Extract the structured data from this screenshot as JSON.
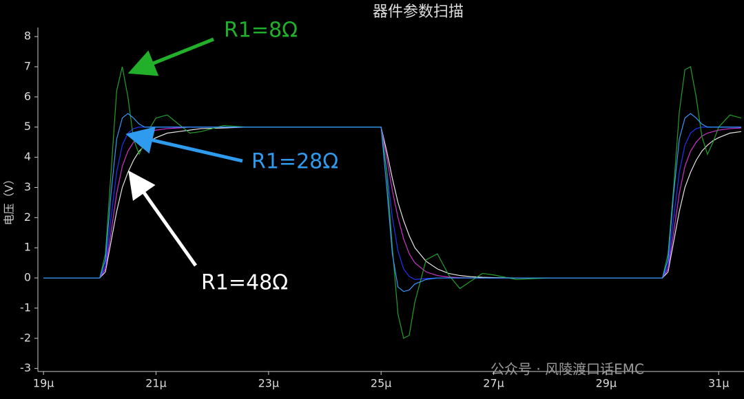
{
  "chart_data": {
    "type": "line",
    "title": "器件参数扫描",
    "y_label": "电压（V）",
    "x": [
      19,
      19.7,
      20.0,
      20.1,
      20.2,
      20.3,
      20.4,
      20.5,
      20.6,
      20.7,
      20.8,
      20.9,
      21.0,
      21.2,
      21.4,
      21.6,
      21.8,
      22.2,
      22.6,
      23,
      24,
      25.0,
      25.1,
      25.2,
      25.3,
      25.4,
      25.5,
      25.6,
      25.8,
      26.0,
      26.2,
      26.4,
      26.6,
      26.8,
      27.0,
      27.4,
      28,
      29,
      30.0,
      30.1,
      30.2,
      30.3,
      30.4,
      30.5,
      30.6,
      30.7,
      30.8,
      30.9,
      31.0,
      31.2,
      31.4
    ],
    "series": [
      {
        "color": "#e6e6e6",
        "values": [
          0,
          0,
          0,
          0.2,
          1.2,
          2.2,
          3.0,
          3.5,
          3.9,
          4.2,
          4.4,
          4.55,
          4.65,
          4.8,
          4.85,
          4.9,
          4.95,
          4.97,
          5,
          5,
          5,
          5,
          4.2,
          3.3,
          2.5,
          1.9,
          1.4,
          1.0,
          0.55,
          0.3,
          0.15,
          0.08,
          0.04,
          0.02,
          0.01,
          0,
          0,
          0,
          0,
          0.2,
          1.2,
          2.2,
          3.0,
          3.5,
          3.9,
          4.2,
          4.4,
          4.55,
          4.65,
          4.8,
          4.85
        ]
      },
      {
        "color": "#cc33cc",
        "values": [
          0,
          0,
          0,
          0.3,
          1.5,
          2.8,
          3.7,
          4.2,
          4.5,
          4.7,
          4.8,
          4.85,
          4.9,
          4.95,
          4.97,
          5,
          5,
          5,
          5,
          5,
          5,
          5,
          4.0,
          2.9,
          2.0,
          1.3,
          0.8,
          0.5,
          0.2,
          0.08,
          0.03,
          0.01,
          0,
          0,
          0,
          0,
          0,
          0,
          0,
          0.3,
          1.5,
          2.8,
          3.7,
          4.2,
          4.5,
          4.7,
          4.8,
          4.85,
          4.9,
          4.95,
          4.97
        ]
      },
      {
        "color": "#2233ff",
        "values": [
          0,
          0,
          0,
          0.4,
          2.0,
          3.5,
          4.4,
          4.8,
          4.95,
          5,
          5,
          5,
          5,
          5,
          5,
          5,
          5,
          5,
          5,
          5,
          5,
          5,
          3.6,
          2.0,
          0.9,
          0.3,
          0.05,
          -0.05,
          -0.02,
          0,
          0,
          0,
          0,
          0,
          0,
          0,
          0,
          0,
          0,
          0.4,
          2.0,
          3.5,
          4.4,
          4.8,
          4.95,
          5,
          5,
          5,
          5,
          5,
          5
        ]
      },
      {
        "color": "#22a02a",
        "values": [
          0,
          0,
          0,
          0.8,
          3.5,
          6.2,
          7.0,
          6.0,
          4.6,
          4.1,
          4.5,
          5.0,
          5.3,
          5.4,
          5.1,
          4.8,
          4.85,
          5.05,
          5.0,
          5,
          5,
          5,
          3.5,
          1.0,
          -1.2,
          -2.0,
          -1.9,
          -0.8,
          0.6,
          0.8,
          0.1,
          -0.35,
          -0.1,
          0.15,
          0.1,
          -0.05,
          0,
          0,
          0,
          0.8,
          3.0,
          5.5,
          6.9,
          7.0,
          6.0,
          4.7,
          4.1,
          4.5,
          5.0,
          5.4,
          5.3
        ]
      },
      {
        "color": "#3399ff",
        "values": [
          0,
          0,
          0,
          0.6,
          2.8,
          4.6,
          5.3,
          5.45,
          5.3,
          5.1,
          5.0,
          5.0,
          5.0,
          5,
          5,
          5,
          5,
          5,
          5,
          5,
          5,
          5,
          3.0,
          0.8,
          -0.3,
          -0.45,
          -0.4,
          -0.2,
          -0.05,
          0,
          0,
          0,
          0,
          0,
          0,
          0,
          0,
          0,
          0,
          0.6,
          2.8,
          4.6,
          5.3,
          5.45,
          5.3,
          5.1,
          5.0,
          5.0,
          5.0,
          5,
          5
        ]
      }
    ],
    "xlim": [
      18.9,
      31.45
    ],
    "ylim": [
      -3.1,
      8.3
    ],
    "xticks": [
      {
        "value": 19,
        "label": "19μ"
      },
      {
        "value": 21,
        "label": "21μ"
      },
      {
        "value": 23,
        "label": "23μ"
      },
      {
        "value": 25,
        "label": "25μ"
      },
      {
        "value": 27,
        "label": "27μ"
      },
      {
        "value": 29,
        "label": "29μ"
      },
      {
        "value": 31,
        "label": "31μ"
      }
    ],
    "yticks": [
      -3,
      -2,
      -1,
      0,
      1,
      2,
      3,
      4,
      5,
      6,
      7,
      8
    ],
    "annotations": [
      "R1=8Ω",
      "R1=28Ω",
      "R1=48Ω"
    ],
    "watermark": "公众号 · 风陵渡口话EMC"
  }
}
